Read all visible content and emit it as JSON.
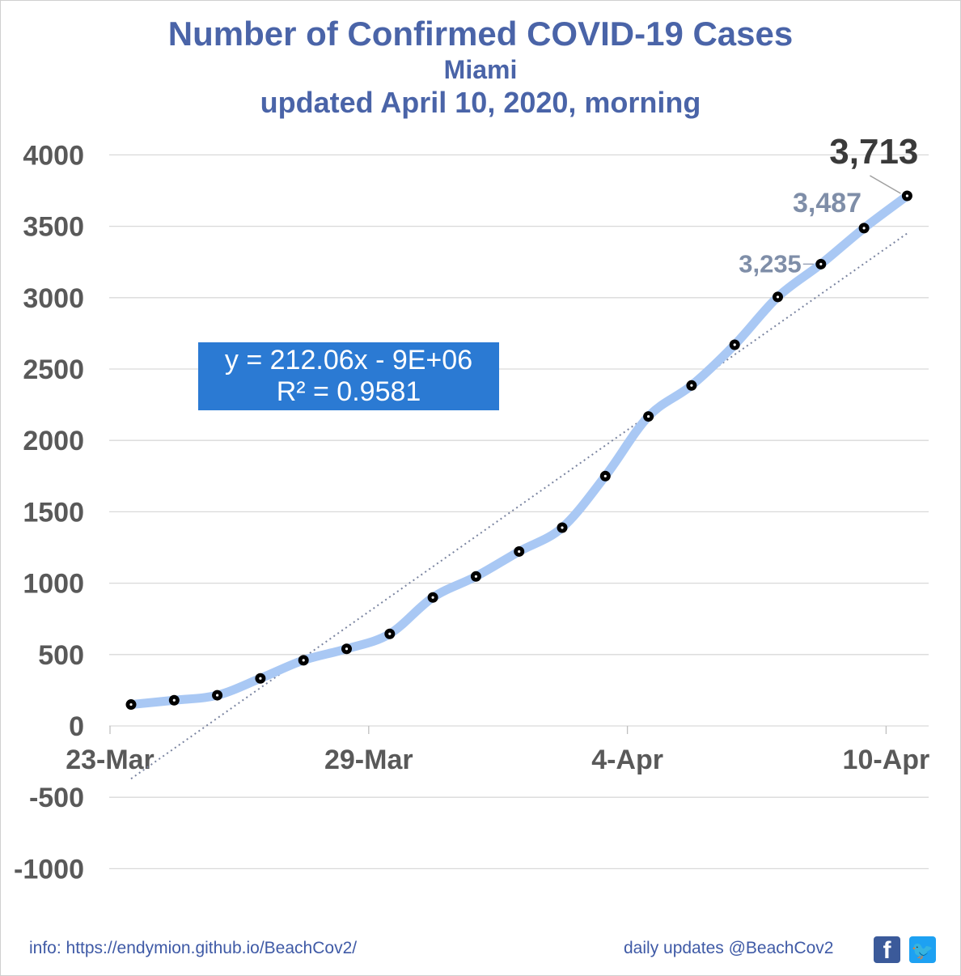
{
  "chart_data": {
    "type": "line",
    "title": "Number of Confirmed COVID-19 Cases",
    "subtitle": "Miami",
    "updated": "updated April 10, 2020, morning",
    "x_tick_labels": [
      "23-Mar",
      "29-Mar",
      "4-Apr",
      "10-Apr"
    ],
    "y_tick_labels": [
      "4000",
      "3500",
      "3000",
      "2500",
      "2000",
      "1500",
      "1000",
      "500",
      "0",
      "-500",
      "-1000"
    ],
    "ylim": [
      -1000,
      4000
    ],
    "grid": true,
    "x": [
      "2020-03-23",
      "2020-03-24",
      "2020-03-25",
      "2020-03-26",
      "2020-03-27",
      "2020-03-28",
      "2020-03-29",
      "2020-03-30",
      "2020-03-31",
      "2020-04-01",
      "2020-04-02",
      "2020-04-03",
      "2020-04-04",
      "2020-04-05",
      "2020-04-06",
      "2020-04-07",
      "2020-04-08",
      "2020-04-09",
      "2020-04-10"
    ],
    "values": [
      150,
      180,
      215,
      333,
      460,
      540,
      645,
      900,
      1047,
      1222,
      1389,
      1750,
      2168,
      2385,
      2670,
      3005,
      3235,
      3487,
      3713
    ],
    "annotations": [
      {
        "label": "3,235",
        "value": 3235
      },
      {
        "label": "3,487",
        "value": 3487
      },
      {
        "label": "3,713",
        "value": 3713
      }
    ],
    "trendline": {
      "equation": "y = 212.06x - 9E+06",
      "r2": "R² = 0.9581",
      "start": {
        "x": "2020-03-23",
        "y": -370
      },
      "end": {
        "x": "2020-04-10",
        "y": 3450
      }
    },
    "colors": {
      "line": "#a9c8f4",
      "marker": "#000000",
      "title": "#4a64a8",
      "axis_text": "#595959",
      "annotation": "#7f8ea8",
      "equation_box": "#2b7ad3",
      "trend": "#7a84a0"
    }
  },
  "footer": {
    "info": "info: https://endymion.github.io/BeachCov2/",
    "updates": "daily updates @BeachCov2",
    "facebook_icon": "f",
    "twitter_icon": "🐦"
  }
}
